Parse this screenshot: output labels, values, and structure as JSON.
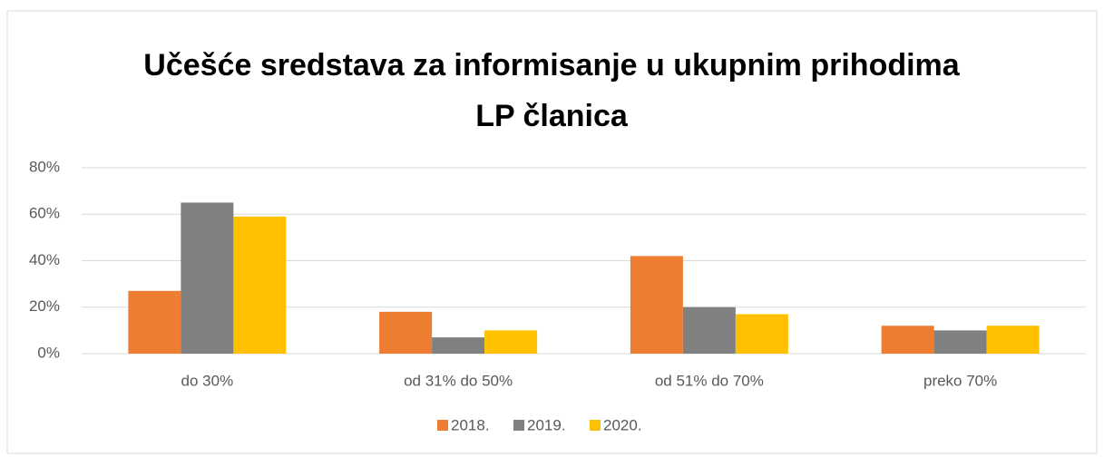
{
  "chart_data": {
    "type": "bar",
    "title": "Učešće sredstava za informisanje u ukupnim prihodima LP članica",
    "categories": [
      "do 30%",
      "od 31% do 50%",
      "od 51% do 70%",
      "preko 70%"
    ],
    "series": [
      {
        "name": "2018.",
        "color": "#ed7d31",
        "values": [
          27,
          18,
          42,
          12
        ]
      },
      {
        "name": "2019.",
        "color": "#808080",
        "values": [
          65,
          7,
          20,
          10
        ]
      },
      {
        "name": "2020.",
        "color": "#ffc000",
        "values": [
          59,
          10,
          17,
          12
        ]
      }
    ],
    "ylim": [
      0,
      80
    ],
    "yticks": [
      {
        "value": 0,
        "label": "0%"
      },
      {
        "value": 20,
        "label": "20%"
      },
      {
        "value": 40,
        "label": "40%"
      },
      {
        "value": 60,
        "label": "60%"
      },
      {
        "value": 80,
        "label": "80%"
      }
    ],
    "grid": true,
    "legend": "bottom"
  }
}
